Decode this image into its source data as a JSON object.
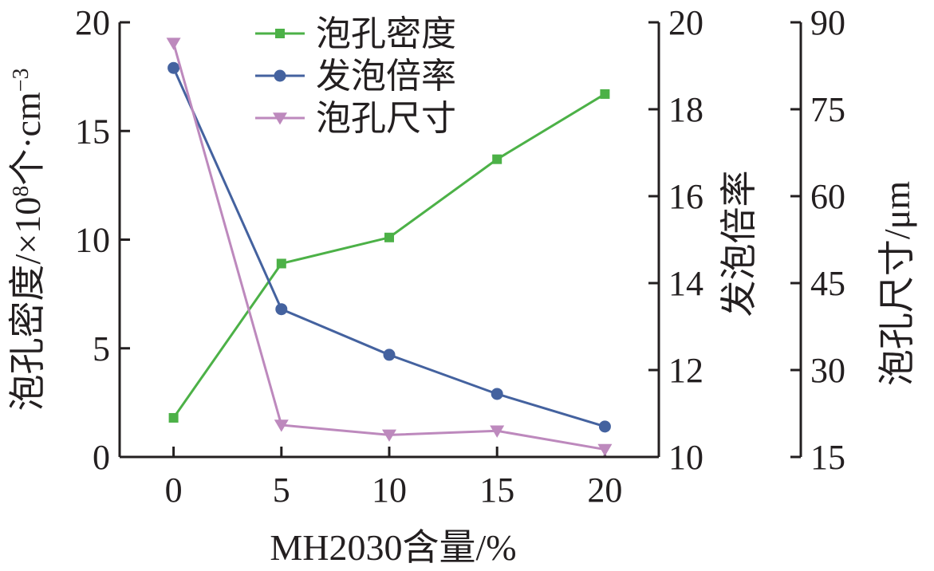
{
  "chart_data": {
    "type": "line",
    "title": "",
    "x": [
      0,
      5,
      10,
      15,
      20
    ],
    "xticks": [
      "0",
      "5",
      "10",
      "15",
      "20"
    ],
    "xlabel": "MH2030含量/%",
    "xlim": [
      -2.5,
      22.5
    ],
    "axes": {
      "left": {
        "label": "泡孔密度/×10⁸个·cm⁻³",
        "label_parts": [
          "泡孔密度/×10",
          "8",
          "个·cm",
          "−3"
        ],
        "ylim": [
          0,
          20
        ],
        "ticks": [
          "0",
          "5",
          "10",
          "15",
          "20"
        ],
        "tick_values": [
          0,
          5,
          10,
          15,
          20
        ]
      },
      "right1": {
        "label": "发泡倍率",
        "ylim": [
          10,
          20
        ],
        "ticks": [
          "10",
          "12",
          "14",
          "16",
          "18",
          "20"
        ],
        "tick_values": [
          10,
          12,
          14,
          16,
          18,
          20
        ]
      },
      "right2": {
        "label": "泡孔尺寸/μm",
        "ylim": [
          15,
          90
        ],
        "ticks": [
          "15",
          "30",
          "45",
          "60",
          "75",
          "90"
        ],
        "tick_values": [
          15,
          30,
          45,
          60,
          75,
          90
        ]
      }
    },
    "series": [
      {
        "name": "泡孔密度",
        "axis": "left",
        "marker": "square",
        "color": "#4cb147",
        "values": [
          1.8,
          8.9,
          10.1,
          13.7,
          16.7
        ]
      },
      {
        "name": "发泡倍率",
        "axis": "right1",
        "marker": "circle",
        "color": "#44629f",
        "values": [
          18.95,
          13.4,
          12.35,
          11.45,
          10.7
        ]
      },
      {
        "name": "泡孔尺寸",
        "axis": "right2",
        "marker": "triangle-down",
        "color": "#bd89bd",
        "values": [
          86.4,
          20.5,
          18.8,
          19.5,
          16.3
        ]
      }
    ],
    "legend_position": "top-center",
    "grid": false
  }
}
